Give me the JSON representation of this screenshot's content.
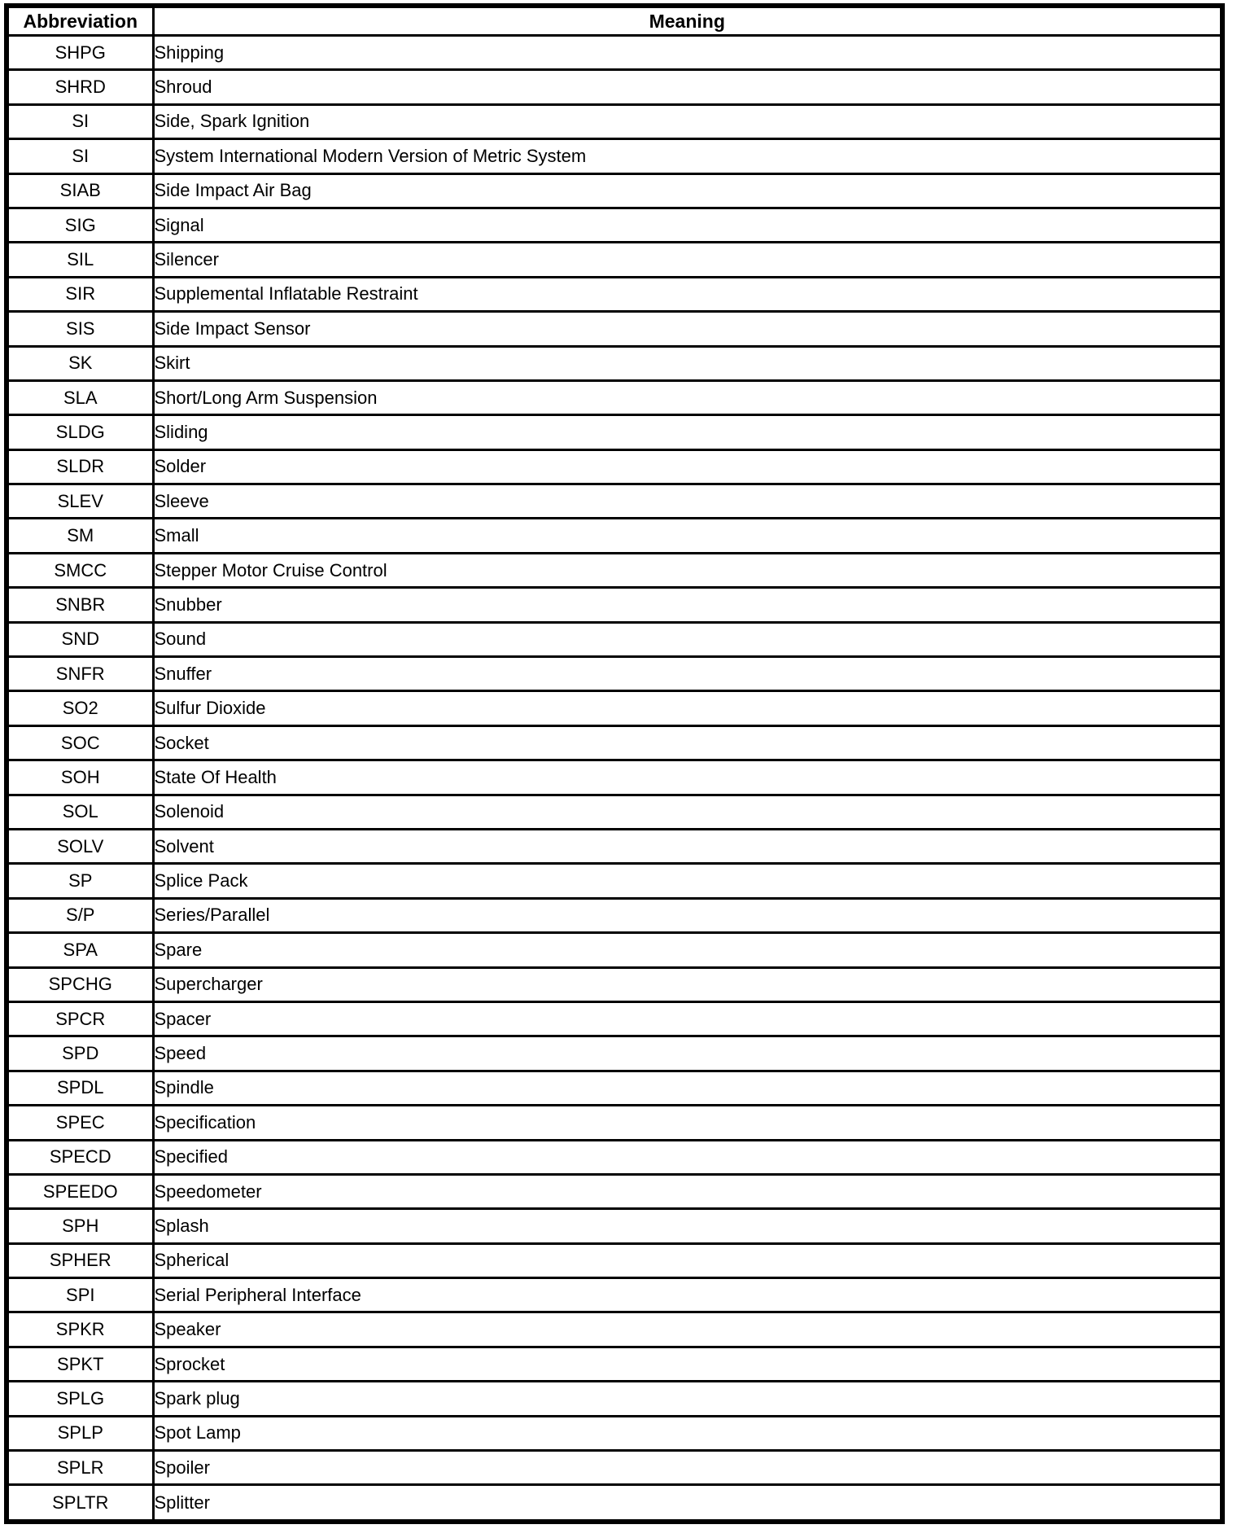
{
  "table": {
    "headers": [
      "Abbreviation",
      "Meaning"
    ],
    "rows": [
      [
        "SHPG",
        "Shipping"
      ],
      [
        "SHRD",
        "Shroud"
      ],
      [
        "SI",
        "Side, Spark Ignition"
      ],
      [
        "SI",
        "System International Modern Version of Metric System"
      ],
      [
        "SIAB",
        "Side Impact Air Bag"
      ],
      [
        "SIG",
        "Signal"
      ],
      [
        "SIL",
        "Silencer"
      ],
      [
        "SIR",
        "Supplemental Inflatable Restraint"
      ],
      [
        "SIS",
        "Side Impact Sensor"
      ],
      [
        "SK",
        "Skirt"
      ],
      [
        "SLA",
        "Short/Long Arm Suspension"
      ],
      [
        "SLDG",
        "Sliding"
      ],
      [
        "SLDR",
        "Solder"
      ],
      [
        "SLEV",
        "Sleeve"
      ],
      [
        "SM",
        "Small"
      ],
      [
        "SMCC",
        "Stepper Motor Cruise Control"
      ],
      [
        "SNBR",
        "Snubber"
      ],
      [
        "SND",
        "Sound"
      ],
      [
        "SNFR",
        "Snuffer"
      ],
      [
        "SO2",
        "Sulfur Dioxide"
      ],
      [
        "SOC",
        "Socket"
      ],
      [
        "SOH",
        "State Of Health"
      ],
      [
        "SOL",
        "Solenoid"
      ],
      [
        "SOLV",
        "Solvent"
      ],
      [
        "SP",
        "Splice Pack"
      ],
      [
        "S/P",
        "Series/Parallel"
      ],
      [
        "SPA",
        "Spare"
      ],
      [
        "SPCHG",
        "Supercharger"
      ],
      [
        "SPCR",
        "Spacer"
      ],
      [
        "SPD",
        "Speed"
      ],
      [
        "SPDL",
        "Spindle"
      ],
      [
        "SPEC",
        "Specification"
      ],
      [
        "SPECD",
        "Specified"
      ],
      [
        "SPEEDO",
        "Speedometer"
      ],
      [
        "SPH",
        "Splash"
      ],
      [
        "SPHER",
        "Spherical"
      ],
      [
        "SPI",
        "Serial Peripheral Interface"
      ],
      [
        "SPKR",
        "Speaker"
      ],
      [
        "SPKT",
        "Sprocket"
      ],
      [
        "SPLG",
        "Spark plug"
      ],
      [
        "SPLP",
        "Spot Lamp"
      ],
      [
        "SPLR",
        "Spoiler"
      ],
      [
        "SPLTR",
        "Splitter"
      ]
    ]
  }
}
